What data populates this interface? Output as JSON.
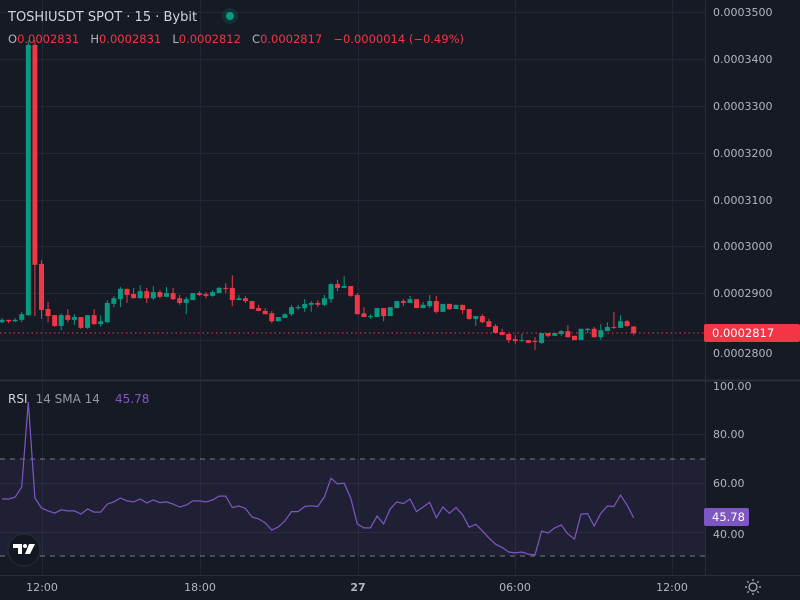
{
  "header": {
    "title": "TOSHIUSDT SPOT · 15 · Bybit",
    "status_dot_color": "#089981",
    "ohlc": {
      "o_label": "O",
      "o": "0.0002831",
      "h_label": "H",
      "h": "0.0002831",
      "l_label": "L",
      "l": "0.0002812",
      "c_label": "C",
      "c": "0.0002817",
      "change": "−0.0000014 (−0.49%)"
    }
  },
  "price_axis": {
    "ticks": [
      "0.0003500",
      "0.0003400",
      "0.0003300",
      "0.0003200",
      "0.0003100",
      "0.0003000",
      "0.0002900",
      "0.0002800"
    ],
    "current_price_label": "0.0002817"
  },
  "rsi_pane": {
    "label": "RSI",
    "params": "14 SMA 14",
    "value": "45.78",
    "ticks": [
      "100.00",
      "80.00",
      "60.00",
      "40.00"
    ],
    "current_value_label": "45.78"
  },
  "time_axis": {
    "ticks": [
      "12:00",
      "18:00",
      "27",
      "06:00",
      "12:00"
    ]
  },
  "colors": {
    "background": "#161a25",
    "up": "#089981",
    "down": "#f23645",
    "rsi_line": "#7e57c2",
    "band": "rgba(126,87,194,0.1)",
    "text": "#d1d4dc"
  },
  "icons": {
    "logo": "tradingview-logo",
    "settings": "settings-sun-icon"
  },
  "chart_data": {
    "type": "candlestick",
    "interval": "15",
    "ylim": [
      0.000276,
      0.000351
    ],
    "grid": true,
    "candles_fields": [
      "time",
      "open",
      "high",
      "low",
      "close"
    ],
    "candles": [
      [
        "10:30",
        0.000284,
        0.0002849,
        0.0002838,
        0.0002845
      ],
      [
        "10:45",
        0.0002845,
        0.0002845,
        0.0002838,
        0.0002842
      ],
      [
        "11:00",
        0.0002842,
        0.0002849,
        0.000284,
        0.0002845
      ],
      [
        "11:15",
        0.0002845,
        0.0002862,
        0.000284,
        0.0002857
      ],
      [
        "11:30",
        0.0002855,
        0.000344,
        0.0002853,
        0.000343
      ],
      [
        "11:45",
        0.000343,
        0.000344,
        0.0002853,
        0.0002962
      ],
      [
        "12:00",
        0.0002964,
        0.0002972,
        0.0002847,
        0.0002866
      ],
      [
        "12:15",
        0.0002868,
        0.0002883,
        0.000284,
        0.0002853
      ],
      [
        "12:30",
        0.0002855,
        0.0002855,
        0.000283,
        0.0002832
      ],
      [
        "12:45",
        0.0002832,
        0.0002859,
        0.0002823,
        0.0002855
      ],
      [
        "13:00",
        0.0002855,
        0.0002868,
        0.000284,
        0.0002845
      ],
      [
        "13:15",
        0.0002845,
        0.0002857,
        0.0002834,
        0.0002851
      ],
      [
        "13:30",
        0.0002851,
        0.0002851,
        0.0002826,
        0.0002828
      ],
      [
        "13:45",
        0.0002828,
        0.0002855,
        0.0002826,
        0.0002855
      ],
      [
        "14:00",
        0.0002855,
        0.0002868,
        0.0002834,
        0.0002836
      ],
      [
        "14:15",
        0.0002836,
        0.0002855,
        0.000283,
        0.0002842
      ],
      [
        "14:30",
        0.000284,
        0.0002887,
        0.0002838,
        0.0002881
      ],
      [
        "14:45",
        0.0002879,
        0.0002896,
        0.0002872,
        0.0002891
      ],
      [
        "15:00",
        0.0002889,
        0.0002915,
        0.0002872,
        0.0002911
      ],
      [
        "15:15",
        0.0002911,
        0.0002911,
        0.0002881,
        0.0002898
      ],
      [
        "15:30",
        0.00029,
        0.0002913,
        0.0002891,
        0.0002891
      ],
      [
        "15:45",
        0.0002891,
        0.0002919,
        0.0002891,
        0.0002906
      ],
      [
        "16:00",
        0.0002906,
        0.0002913,
        0.0002881,
        0.0002891
      ],
      [
        "16:15",
        0.0002891,
        0.0002917,
        0.0002887,
        0.0002904
      ],
      [
        "16:30",
        0.0002904,
        0.0002908,
        0.0002891,
        0.0002894
      ],
      [
        "16:45",
        0.0002894,
        0.0002915,
        0.0002894,
        0.0002902
      ],
      [
        "17:00",
        0.0002902,
        0.0002913,
        0.0002887,
        0.0002889
      ],
      [
        "17:15",
        0.0002891,
        0.0002898,
        0.0002877,
        0.0002881
      ],
      [
        "17:30",
        0.0002881,
        0.0002894,
        0.0002857,
        0.0002889
      ],
      [
        "17:45",
        0.0002887,
        0.0002902,
        0.0002887,
        0.0002902
      ],
      [
        "18:00",
        0.0002902,
        0.0002906,
        0.0002896,
        0.0002898
      ],
      [
        "18:15",
        0.00029,
        0.0002904,
        0.0002891,
        0.0002896
      ],
      [
        "18:30",
        0.0002896,
        0.0002908,
        0.0002894,
        0.0002904
      ],
      [
        "18:45",
        0.0002902,
        0.0002915,
        0.0002902,
        0.0002913
      ],
      [
        "19:00",
        0.0002913,
        0.0002923,
        0.0002902,
        0.0002911
      ],
      [
        "19:15",
        0.0002913,
        0.000294,
        0.0002874,
        0.0002887
      ],
      [
        "19:30",
        0.0002887,
        0.0002898,
        0.0002887,
        0.0002891
      ],
      [
        "19:45",
        0.0002891,
        0.0002896,
        0.0002881,
        0.0002885
      ],
      [
        "20:00",
        0.0002885,
        0.0002885,
        0.0002868,
        0.0002868
      ],
      [
        "20:15",
        0.000287,
        0.0002877,
        0.0002864,
        0.0002864
      ],
      [
        "20:30",
        0.0002864,
        0.000287,
        0.0002857,
        0.0002857
      ],
      [
        "20:45",
        0.0002859,
        0.0002864,
        0.0002838,
        0.0002842
      ],
      [
        "21:00",
        0.0002842,
        0.0002851,
        0.0002842,
        0.0002851
      ],
      [
        "21:15",
        0.0002849,
        0.0002859,
        0.0002849,
        0.0002857
      ],
      [
        "21:30",
        0.0002857,
        0.0002877,
        0.0002853,
        0.0002872
      ],
      [
        "21:45",
        0.000287,
        0.0002877,
        0.0002866,
        0.0002872
      ],
      [
        "22:00",
        0.000287,
        0.0002889,
        0.0002862,
        0.0002879
      ],
      [
        "22:15",
        0.0002877,
        0.0002885,
        0.0002862,
        0.0002881
      ],
      [
        "22:30",
        0.0002881,
        0.0002887,
        0.0002872,
        0.0002877
      ],
      [
        "22:45",
        0.0002877,
        0.0002898,
        0.0002874,
        0.0002891
      ],
      [
        "23:00",
        0.0002889,
        0.0002923,
        0.0002881,
        0.0002921
      ],
      [
        "23:15",
        0.0002921,
        0.000293,
        0.0002906,
        0.0002913
      ],
      [
        "23:30",
        0.0002913,
        0.0002938,
        0.0002913,
        0.0002917
      ],
      [
        "23:45",
        0.0002917,
        0.0002917,
        0.0002894,
        0.0002896
      ],
      [
        "00:00",
        0.0002898,
        0.0002902,
        0.0002857,
        0.0002857
      ],
      [
        "00:15",
        0.0002859,
        0.0002872,
        0.0002851,
        0.0002851
      ],
      [
        "00:30",
        0.0002851,
        0.0002857,
        0.0002847,
        0.0002853
      ],
      [
        "00:45",
        0.0002851,
        0.000287,
        0.0002851,
        0.000287
      ],
      [
        "01:00",
        0.000287,
        0.000287,
        0.0002842,
        0.0002853
      ],
      [
        "01:15",
        0.0002853,
        0.0002872,
        0.0002853,
        0.0002872
      ],
      [
        "01:30",
        0.000287,
        0.0002885,
        0.000287,
        0.0002885
      ],
      [
        "01:45",
        0.0002885,
        0.0002889,
        0.0002874,
        0.0002881
      ],
      [
        "02:00",
        0.0002881,
        0.0002896,
        0.0002881,
        0.0002889
      ],
      [
        "02:15",
        0.0002889,
        0.0002889,
        0.000287,
        0.000287
      ],
      [
        "02:30",
        0.000287,
        0.0002883,
        0.000287,
        0.0002877
      ],
      [
        "02:45",
        0.0002874,
        0.0002898,
        0.000287,
        0.0002885
      ],
      [
        "03:00",
        0.0002885,
        0.0002896,
        0.0002859,
        0.0002862
      ],
      [
        "03:15",
        0.0002862,
        0.0002879,
        0.0002862,
        0.0002879
      ],
      [
        "03:30",
        0.0002879,
        0.0002879,
        0.0002866,
        0.0002868
      ],
      [
        "03:45",
        0.0002868,
        0.0002877,
        0.0002868,
        0.0002877
      ],
      [
        "04:00",
        0.0002877,
        0.0002877,
        0.0002857,
        0.0002866
      ],
      [
        "04:15",
        0.0002868,
        0.0002868,
        0.0002845,
        0.0002847
      ],
      [
        "04:30",
        0.0002847,
        0.0002853,
        0.0002832,
        0.0002853
      ],
      [
        "04:45",
        0.0002853,
        0.0002857,
        0.0002838,
        0.000284
      ],
      [
        "05:00",
        0.0002842,
        0.0002847,
        0.000283,
        0.000283
      ],
      [
        "05:15",
        0.0002832,
        0.0002836,
        0.0002817,
        0.0002817
      ],
      [
        "05:30",
        0.0002819,
        0.0002826,
        0.0002813,
        0.0002813
      ],
      [
        "05:45",
        0.0002815,
        0.0002815,
        0.0002796,
        0.0002802
      ],
      [
        "06:00",
        0.0002804,
        0.0002813,
        0.0002794,
        0.00028
      ],
      [
        "06:15",
        0.00028,
        0.0002815,
        0.0002798,
        0.0002802
      ],
      [
        "06:30",
        0.0002802,
        0.0002802,
        0.0002796,
        0.0002796
      ],
      [
        "06:45",
        0.00028,
        0.0002808,
        0.0002781,
        0.0002798
      ],
      [
        "07:00",
        0.0002796,
        0.0002817,
        0.0002794,
        0.0002817
      ],
      [
        "07:15",
        0.0002817,
        0.0002817,
        0.0002808,
        0.0002811
      ],
      [
        "07:30",
        0.0002811,
        0.0002817,
        0.0002811,
        0.0002817
      ],
      [
        "07:45",
        0.0002815,
        0.0002823,
        0.0002811,
        0.0002821
      ],
      [
        "08:00",
        0.0002821,
        0.0002834,
        0.0002808,
        0.0002808
      ],
      [
        "08:15",
        0.0002811,
        0.0002811,
        0.0002802,
        0.0002802
      ],
      [
        "08:30",
        0.0002802,
        0.0002826,
        0.0002802,
        0.0002826
      ],
      [
        "08:45",
        0.0002823,
        0.0002828,
        0.0002817,
        0.0002826
      ],
      [
        "09:00",
        0.0002826,
        0.000283,
        0.0002808,
        0.0002808
      ],
      [
        "09:15",
        0.0002808,
        0.0002836,
        0.0002802,
        0.0002823
      ],
      [
        "09:30",
        0.0002821,
        0.000284,
        0.0002821,
        0.000283
      ],
      [
        "09:45",
        0.000283,
        0.0002862,
        0.0002826,
        0.0002828
      ],
      [
        "10:00",
        0.0002828,
        0.0002855,
        0.0002828,
        0.0002842
      ],
      [
        "10:15",
        0.0002842,
        0.0002845,
        0.000283,
        0.0002832
      ],
      [
        "10:30",
        0.0002831,
        0.0002831,
        0.0002812,
        0.0002817
      ]
    ],
    "current_price": 0.0002817,
    "rsi": {
      "ylim": [
        24,
        100
      ],
      "upper_band": 70,
      "lower_band": 30,
      "values": [
        53.5,
        53.5,
        54.3,
        58.4,
        93.4,
        53.9,
        49.8,
        48.6,
        47.7,
        49,
        48.6,
        48.6,
        47.3,
        49.4,
        48.1,
        48.1,
        51.4,
        52.3,
        53.9,
        52.7,
        52.3,
        53.5,
        51.9,
        53.1,
        52,
        52.3,
        51.4,
        50.2,
        51,
        52.7,
        52.7,
        52.3,
        53.1,
        54.7,
        54.7,
        50,
        50.6,
        49.6,
        46.1,
        45.3,
        43.7,
        40.7,
        42,
        44.5,
        48.3,
        48.3,
        50.4,
        50.7,
        50.4,
        54.4,
        62,
        59.7,
        60,
        53.9,
        43.2,
        41.6,
        41.6,
        46.5,
        43.2,
        49.4,
        52.3,
        51.6,
        53.5,
        48.3,
        50.2,
        52.1,
        45.8,
        50.2,
        47.6,
        50,
        47,
        41.9,
        43.1,
        40.4,
        37.5,
        34.9,
        33.6,
        31.7,
        31.3,
        31.7,
        30.8,
        30.5,
        40.3,
        39.5,
        41.6,
        42.8,
        39.1,
        37,
        47.3,
        47.5,
        42.4,
        47.6,
        50.6,
        50.4,
        55.1,
        51,
        45.78
      ]
    }
  }
}
